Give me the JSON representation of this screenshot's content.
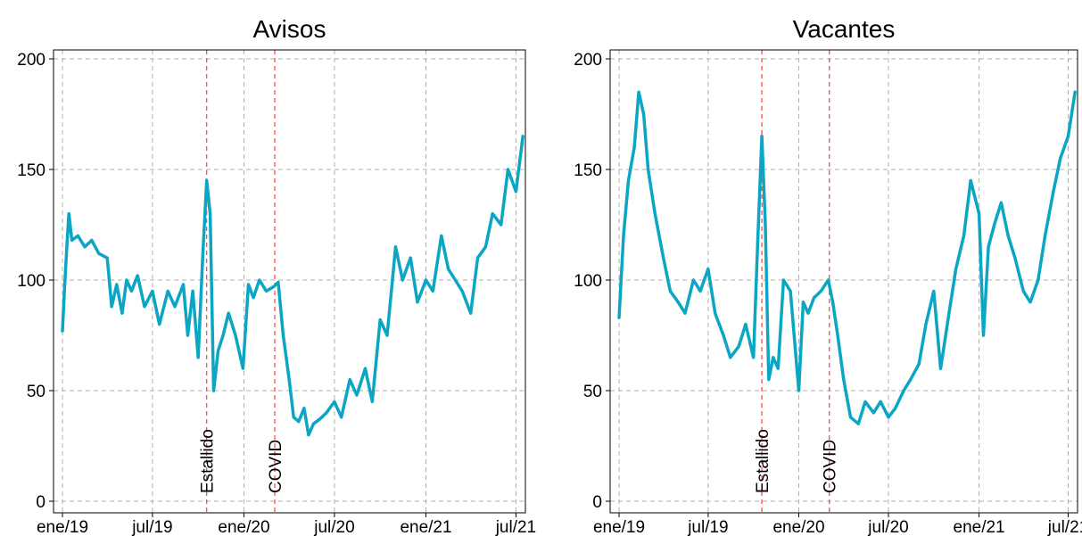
{
  "chart_data": [
    {
      "type": "line",
      "title": "Avisos",
      "xlabel": "",
      "ylabel": "",
      "x_tick_labels": [
        "ene/19",
        "jul/19",
        "ene/20",
        "jul/20",
        "ene/21",
        "jul/21"
      ],
      "x_ticks": [
        "2019-01-01",
        "2019-07-01",
        "2020-01-01",
        "2020-07-01",
        "2021-01-01",
        "2021-07-01"
      ],
      "y_ticks": [
        0,
        50,
        100,
        150,
        200
      ],
      "ylim": [
        0,
        200
      ],
      "xlim": [
        "2019-01-01",
        "2021-07-20"
      ],
      "grid": true,
      "line_color": "#0aa6c4",
      "event_color": "#ff4d4d",
      "events": [
        {
          "date": "2019-10-18",
          "label": "Estallido"
        },
        {
          "date": "2020-03-03",
          "label": "COVID"
        }
      ],
      "series": [
        {
          "x": [
            "2019-01-01",
            "2019-01-05",
            "2019-01-09",
            "2019-01-14",
            "2019-01-20",
            "2019-02-01",
            "2019-02-15",
            "2019-03-01",
            "2019-03-15",
            "2019-04-01",
            "2019-04-10",
            "2019-04-20",
            "2019-05-01",
            "2019-05-10",
            "2019-05-20",
            "2019-06-01",
            "2019-06-15",
            "2019-07-01",
            "2019-07-15",
            "2019-08-01",
            "2019-08-15",
            "2019-09-01",
            "2019-09-10",
            "2019-09-20",
            "2019-10-01",
            "2019-10-10",
            "2019-10-18",
            "2019-10-25",
            "2019-11-01",
            "2019-11-10",
            "2019-11-20",
            "2019-12-01",
            "2019-12-15",
            "2019-12-30",
            "2020-01-10",
            "2020-01-20",
            "2020-02-01",
            "2020-02-15",
            "2020-03-01",
            "2020-03-10",
            "2020-03-20",
            "2020-04-01",
            "2020-04-10",
            "2020-04-20",
            "2020-05-01",
            "2020-05-10",
            "2020-05-20",
            "2020-06-01",
            "2020-06-15",
            "2020-07-01",
            "2020-07-15",
            "2020-08-01",
            "2020-08-15",
            "2020-09-01",
            "2020-09-15",
            "2020-10-01",
            "2020-10-15",
            "2020-11-01",
            "2020-11-15",
            "2020-12-01",
            "2020-12-15",
            "2021-01-01",
            "2021-01-15",
            "2021-02-01",
            "2021-02-15",
            "2021-03-01",
            "2021-03-15",
            "2021-04-01",
            "2021-04-15",
            "2021-05-01",
            "2021-05-15",
            "2021-06-01",
            "2021-06-15",
            "2021-07-01",
            "2021-07-15"
          ],
          "values": [
            77,
            95,
            112,
            130,
            118,
            120,
            115,
            118,
            112,
            110,
            88,
            98,
            85,
            100,
            95,
            102,
            88,
            95,
            80,
            95,
            88,
            98,
            75,
            95,
            65,
            110,
            145,
            130,
            50,
            68,
            75,
            85,
            75,
            60,
            98,
            92,
            100,
            95,
            97,
            99,
            75,
            55,
            38,
            36,
            42,
            30,
            35,
            37,
            40,
            45,
            38,
            55,
            48,
            60,
            45,
            82,
            75,
            115,
            100,
            110,
            90,
            100,
            95,
            120,
            105,
            100,
            95,
            85,
            110,
            115,
            130,
            125,
            150,
            140,
            165
          ]
        }
      ]
    },
    {
      "type": "line",
      "title": "Vacantes",
      "xlabel": "",
      "ylabel": "",
      "x_tick_labels": [
        "ene/19",
        "jul/19",
        "ene/20",
        "jul/20",
        "ene/21",
        "jul/21"
      ],
      "x_ticks": [
        "2019-01-01",
        "2019-07-01",
        "2020-01-01",
        "2020-07-01",
        "2021-01-01",
        "2021-07-01"
      ],
      "y_ticks": [
        0,
        50,
        100,
        150,
        200
      ],
      "ylim": [
        0,
        200
      ],
      "xlim": [
        "2019-01-01",
        "2021-07-20"
      ],
      "grid": true,
      "line_color": "#0aa6c4",
      "event_color": "#ff4d4d",
      "events": [
        {
          "date": "2019-10-18",
          "label": "Estallido"
        },
        {
          "date": "2020-03-03",
          "label": "COVID"
        }
      ],
      "series": [
        {
          "x": [
            "2019-01-01",
            "2019-01-10",
            "2019-01-20",
            "2019-02-01",
            "2019-02-10",
            "2019-02-20",
            "2019-03-01",
            "2019-03-15",
            "2019-04-01",
            "2019-04-15",
            "2019-05-01",
            "2019-05-15",
            "2019-06-01",
            "2019-06-15",
            "2019-07-01",
            "2019-07-15",
            "2019-08-01",
            "2019-08-15",
            "2019-09-01",
            "2019-09-15",
            "2019-10-01",
            "2019-10-10",
            "2019-10-18",
            "2019-10-25",
            "2019-11-01",
            "2019-11-10",
            "2019-11-20",
            "2019-12-01",
            "2019-12-15",
            "2020-01-01",
            "2020-01-10",
            "2020-01-20",
            "2020-02-01",
            "2020-02-15",
            "2020-03-01",
            "2020-03-10",
            "2020-03-20",
            "2020-04-01",
            "2020-04-15",
            "2020-05-01",
            "2020-05-15",
            "2020-06-01",
            "2020-06-15",
            "2020-07-01",
            "2020-07-15",
            "2020-08-01",
            "2020-08-15",
            "2020-09-01",
            "2020-09-15",
            "2020-10-01",
            "2020-10-15",
            "2020-11-01",
            "2020-11-15",
            "2020-12-01",
            "2020-12-15",
            "2021-01-01",
            "2021-01-10",
            "2021-01-20",
            "2021-02-01",
            "2021-02-15",
            "2021-03-01",
            "2021-03-15",
            "2021-04-01",
            "2021-04-15",
            "2021-05-01",
            "2021-05-15",
            "2021-06-01",
            "2021-06-15",
            "2021-07-01",
            "2021-07-15"
          ],
          "values": [
            83,
            120,
            145,
            160,
            185,
            175,
            150,
            130,
            110,
            95,
            90,
            85,
            100,
            95,
            105,
            85,
            75,
            65,
            70,
            80,
            65,
            120,
            165,
            125,
            55,
            65,
            60,
            100,
            95,
            50,
            90,
            85,
            92,
            95,
            100,
            90,
            75,
            55,
            38,
            35,
            45,
            40,
            45,
            38,
            42,
            50,
            55,
            62,
            80,
            95,
            60,
            85,
            105,
            120,
            145,
            130,
            75,
            115,
            125,
            135,
            120,
            110,
            95,
            90,
            100,
            120,
            140,
            155,
            165,
            185
          ]
        }
      ]
    }
  ]
}
